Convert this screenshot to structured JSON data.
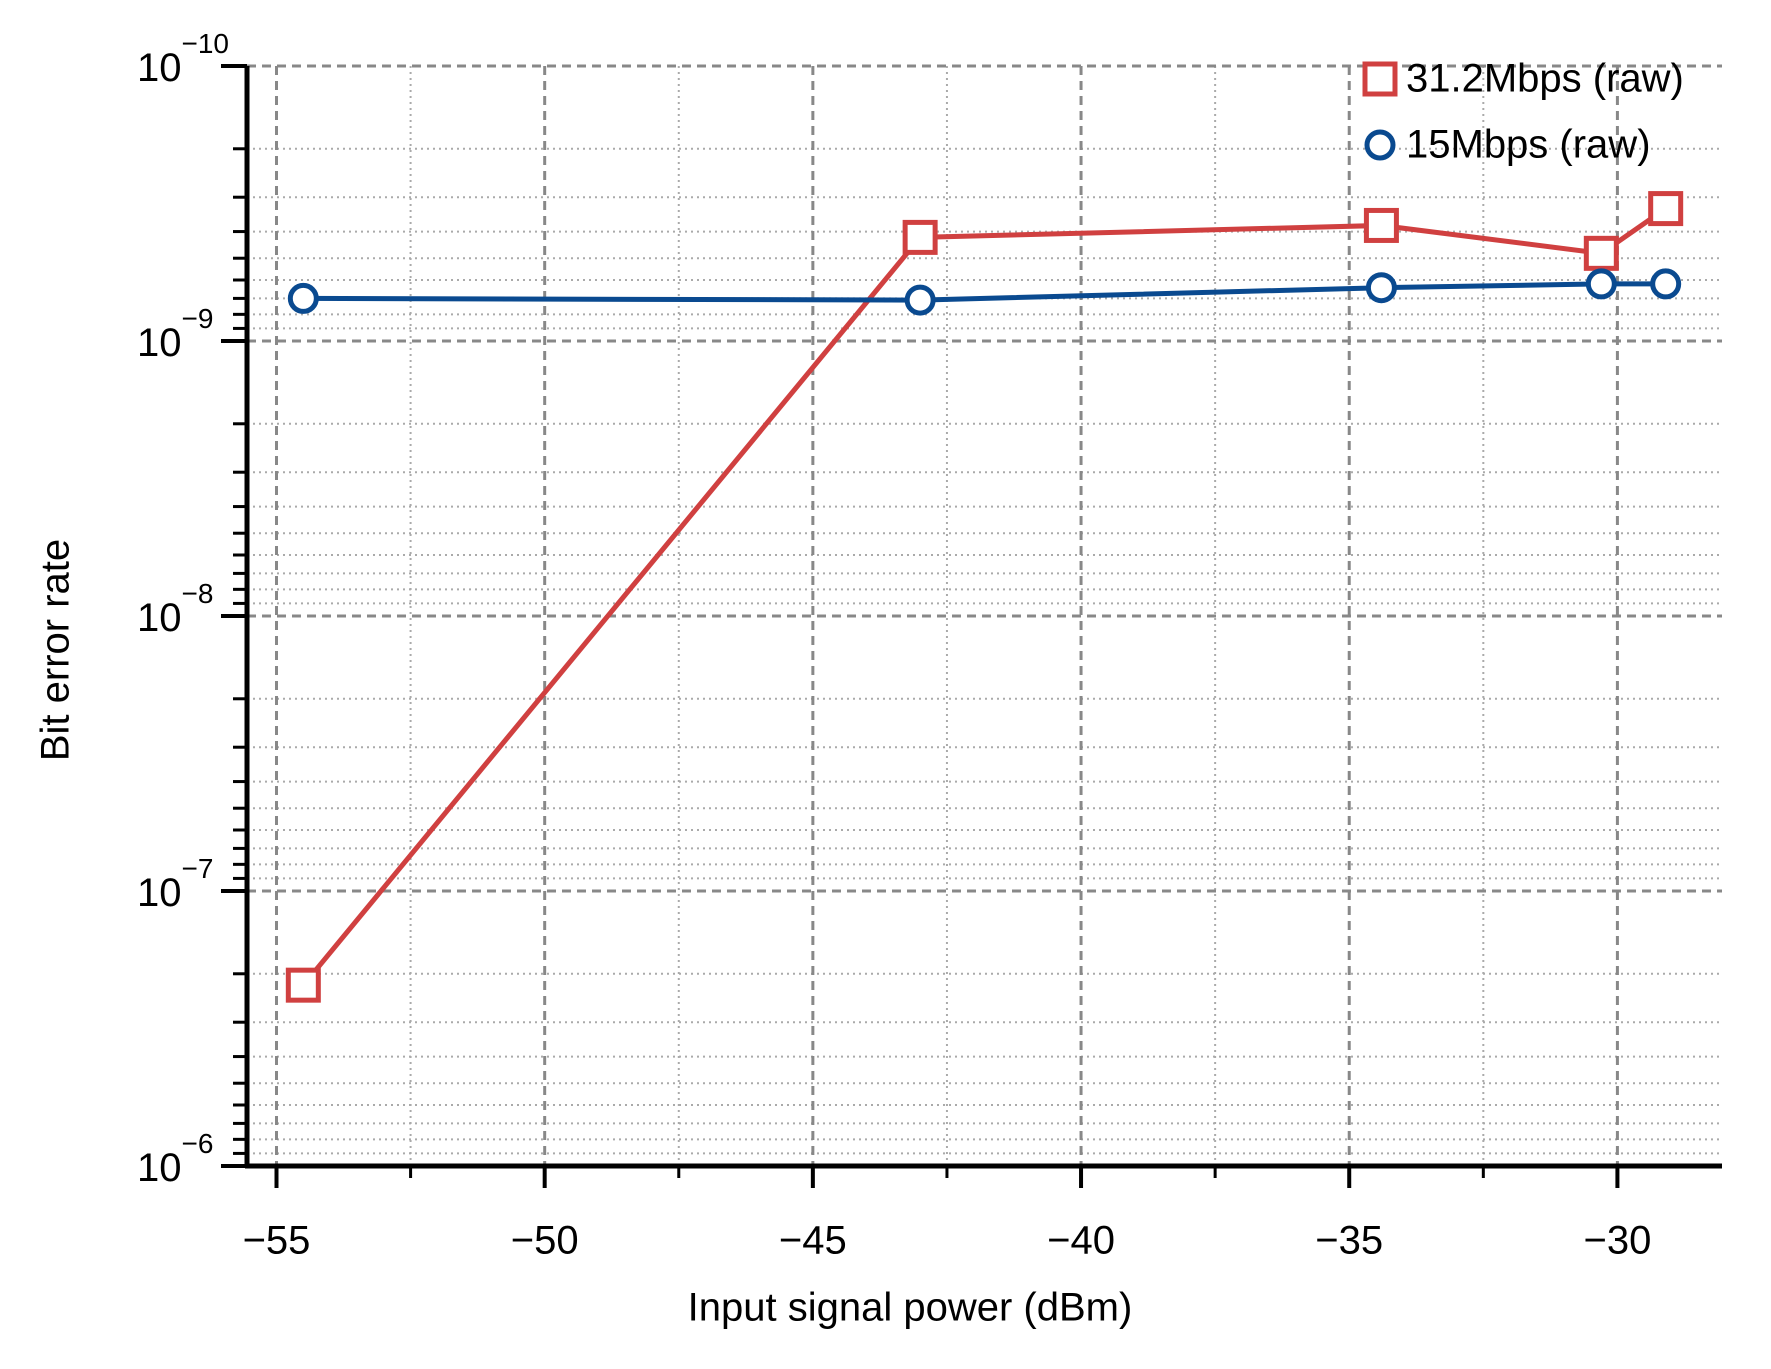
{
  "chart_data": {
    "type": "line",
    "xlabel": "Input signal power (dBm)",
    "ylabel": "Bit error rate",
    "x": [
      -54.5,
      -43,
      -34.4,
      -30.3,
      -29.1
    ],
    "series": [
      {
        "name": "31.2Mbps (raw)",
        "color": "#d04040",
        "marker": "square",
        "values": [
          2.2e-07,
          4.2e-10,
          3.8e-10,
          4.8e-10,
          3.3e-10
        ]
      },
      {
        "name": "15Mbps (raw)",
        "color": "#0a4a90",
        "marker": "circle",
        "values": [
          7e-10,
          7.1e-10,
          6.4e-10,
          6.2e-10,
          6.2e-10
        ]
      }
    ],
    "xlim": [
      -55.55,
      -28.05
    ],
    "xticks": [
      {
        "value": -55,
        "label": "−55"
      },
      {
        "value": -50,
        "label": "−50"
      },
      {
        "value": -45,
        "label": "−45"
      },
      {
        "value": -40,
        "label": "−40"
      },
      {
        "value": -35,
        "label": "−35"
      },
      {
        "value": -30,
        "label": "−30"
      }
    ],
    "ylim": [
      1e-06,
      1e-10
    ],
    "yscale": "log",
    "yticks": [
      {
        "value": 1e-10,
        "label": "10",
        "exponent": "−10"
      },
      {
        "value": 1e-09,
        "label": "10",
        "exponent": "−9"
      },
      {
        "value": 1e-08,
        "label": "10",
        "exponent": "−8"
      },
      {
        "value": 1e-07,
        "label": "10",
        "exponent": "−7"
      },
      {
        "value": 1e-06,
        "label": "10",
        "exponent": "−6"
      }
    ],
    "grid": true,
    "minor_grid": true,
    "legend": "upper right"
  }
}
